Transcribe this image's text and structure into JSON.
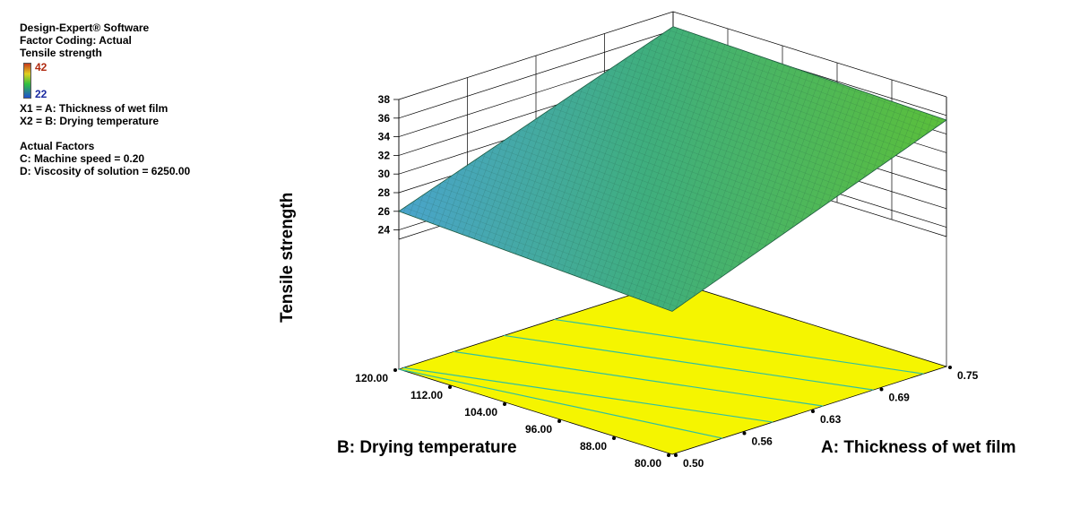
{
  "info": {
    "software": "Design-Expert® Software",
    "coding": "Factor Coding: Actual",
    "response": "Tensile strength",
    "legend_max": "42",
    "legend_min": "22",
    "x1": "X1 = A: Thickness of wet film",
    "x2": "X2 = B: Drying temperature",
    "actual_factors": "Actual Factors",
    "factor_c": "C: Machine speed = 0.20",
    "factor_d": "D: Viscosity of solution = 6250.00"
  },
  "chart_data": {
    "type": "surface",
    "zlabel": "Tensile strength",
    "xlabel": "A: Thickness of wet film",
    "ylabel": "B: Drying temperature",
    "x_ticks": [
      "0.50",
      "0.56",
      "0.63",
      "0.69",
      "0.75"
    ],
    "y_ticks": [
      "80.00",
      "88.00",
      "96.00",
      "104.00",
      "112.00",
      "120.00"
    ],
    "z_ticks": [
      "24",
      "26",
      "28",
      "30",
      "32",
      "34",
      "36",
      "38"
    ],
    "xlim": [
      0.5,
      0.75
    ],
    "ylim": [
      80,
      120
    ],
    "zlim": [
      23,
      38
    ],
    "corners": [
      {
        "A": 0.5,
        "B": 80,
        "z": 24.4
      },
      {
        "A": 0.75,
        "B": 80,
        "z": 35.5
      },
      {
        "A": 0.75,
        "B": 120,
        "z": 36.4
      },
      {
        "A": 0.5,
        "B": 120,
        "z": 26.0
      }
    ],
    "colors": {
      "floor": "#f5f500",
      "contour": "#30c0a0",
      "surface_low": "#40a0d0",
      "surface_high": "#50c030"
    }
  }
}
